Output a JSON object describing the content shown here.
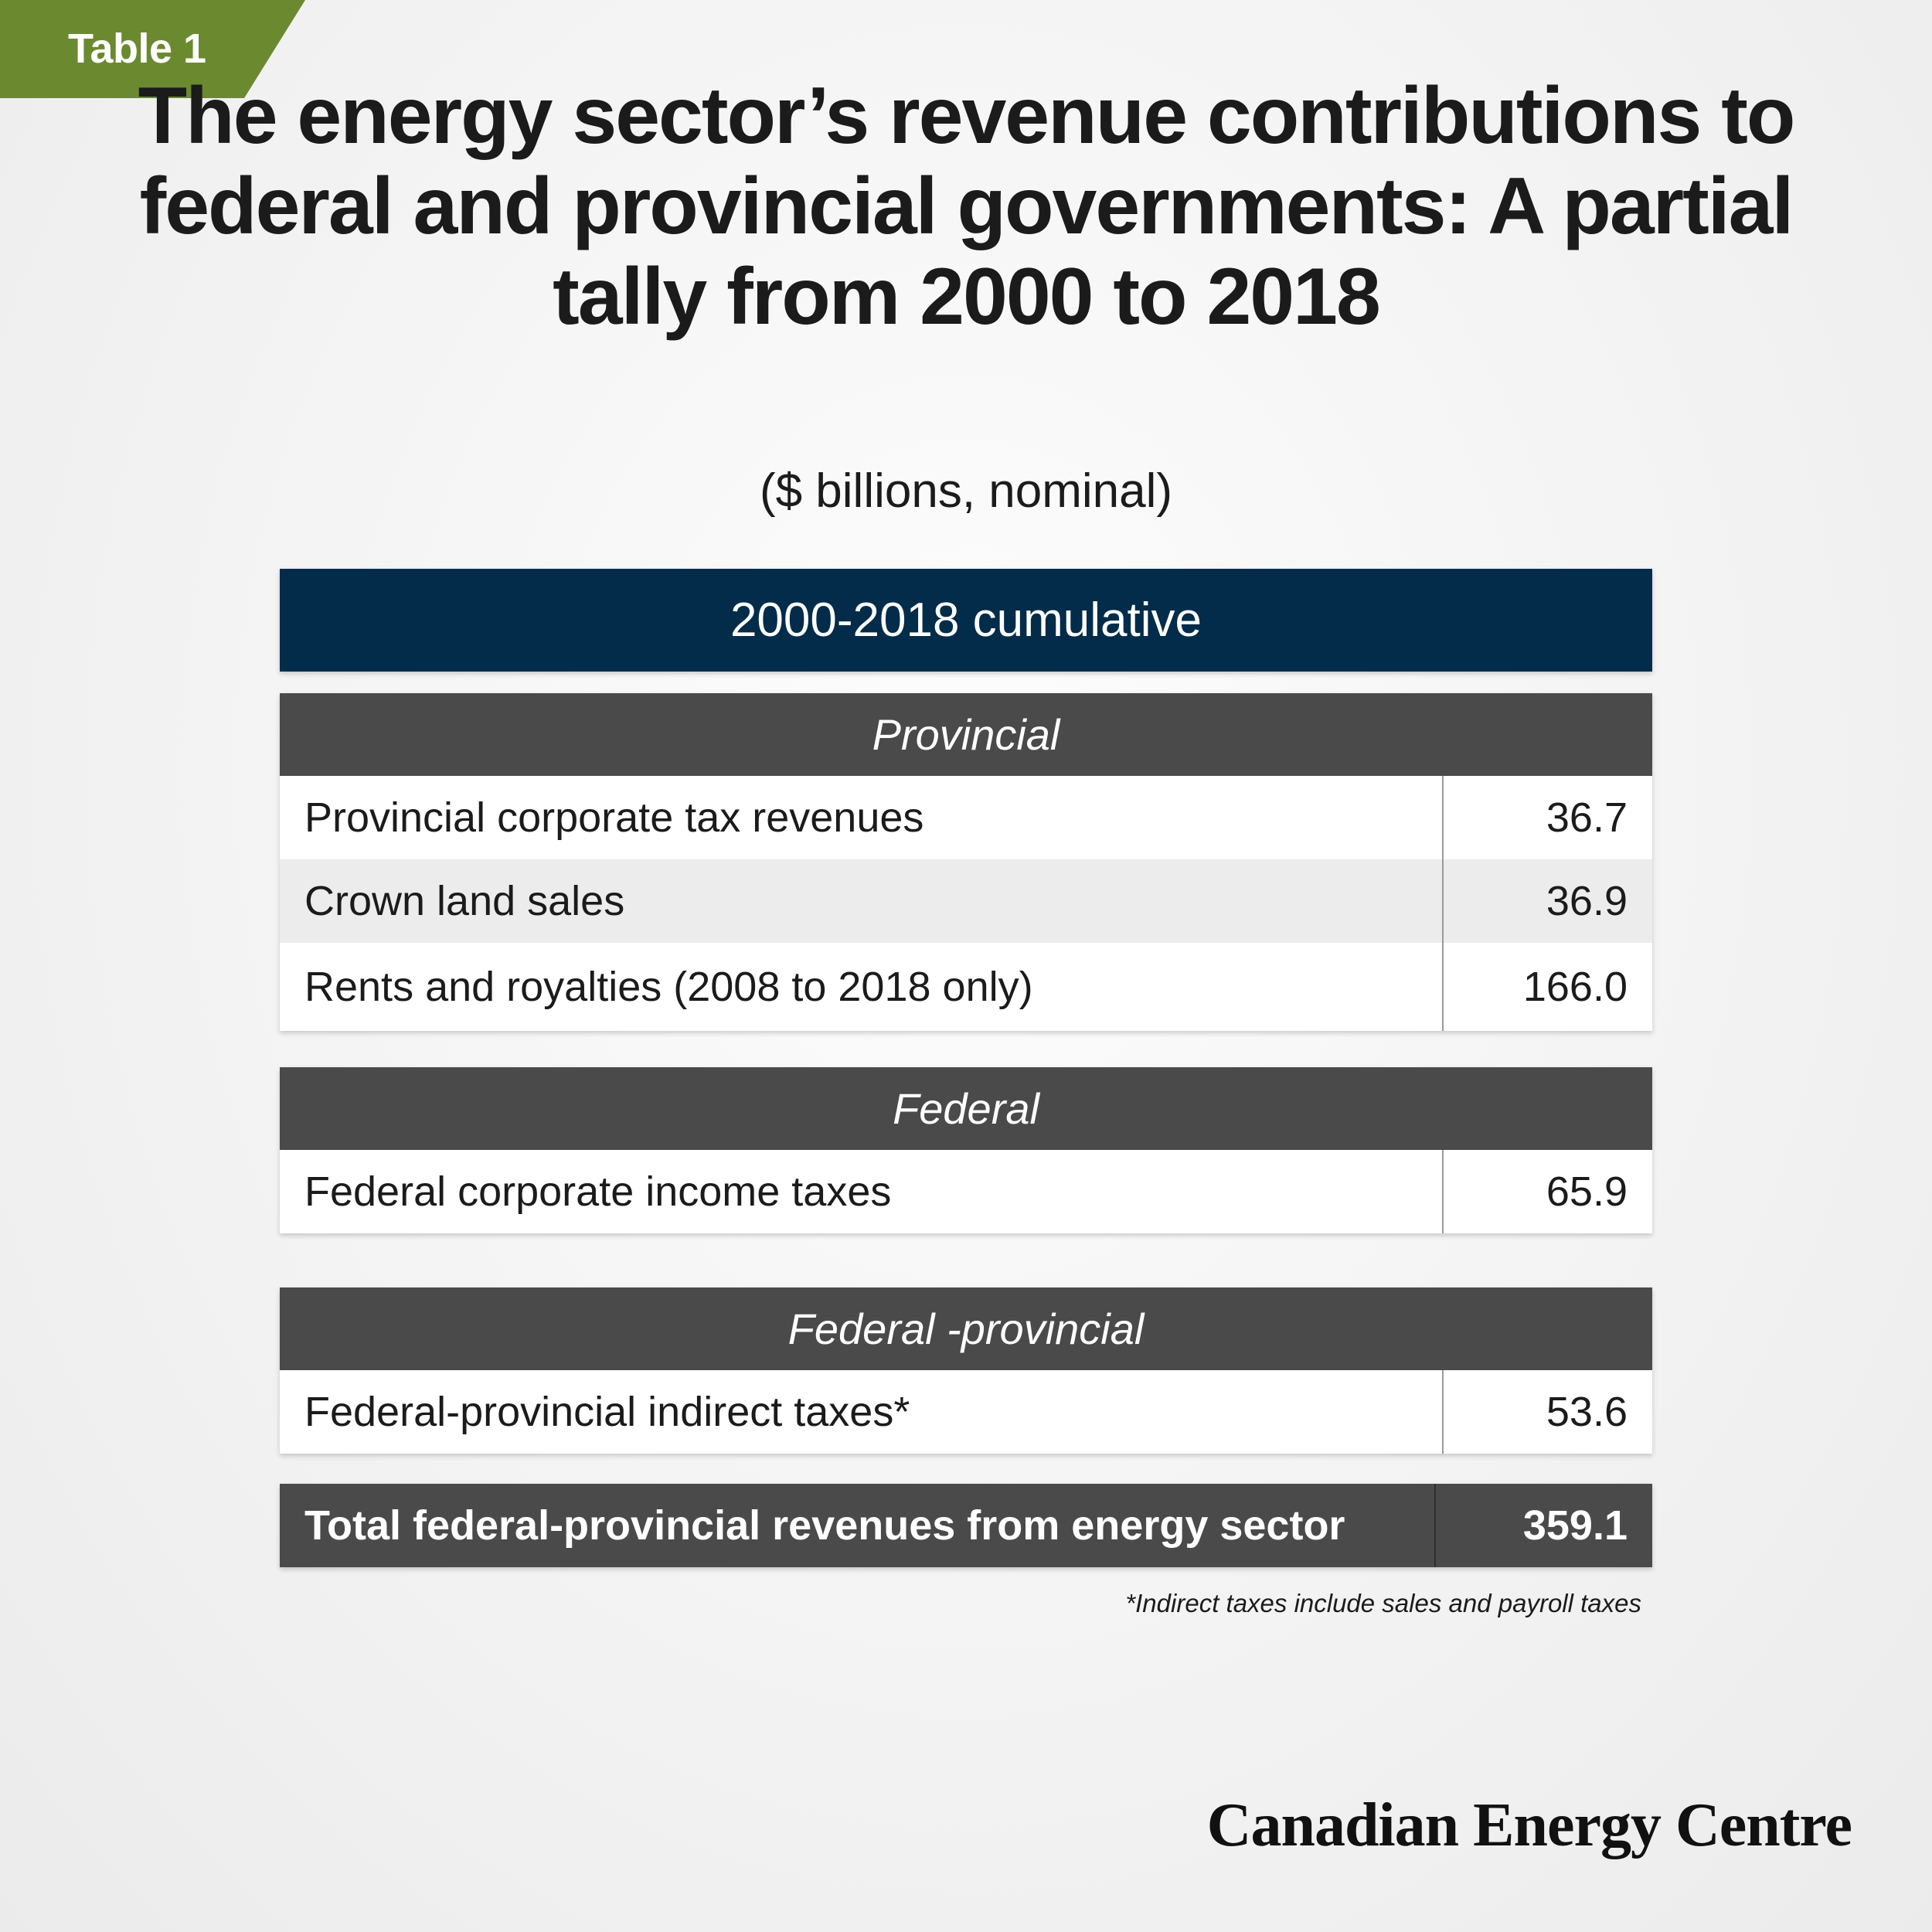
{
  "badge": {
    "label": "Table 1"
  },
  "title": "The energy sector’s revenue contributions to federal and provincial governments: A partial tally from 2000 to 2018",
  "subtitle": "($ billions, nominal)",
  "table": {
    "header": "2000-2018 cumulative",
    "sections": [
      {
        "title": "Provincial",
        "rows": [
          {
            "label": "Provincial corporate tax revenues",
            "value": "36.7"
          },
          {
            "label": "Crown land sales",
            "value": "36.9"
          },
          {
            "label": "Rents and royalties (2008 to 2018 only)",
            "value": "166.0"
          }
        ]
      },
      {
        "title": "Federal",
        "rows": [
          {
            "label": "Federal corporate income taxes",
            "value": "65.9"
          }
        ]
      },
      {
        "title": "Federal -provincial",
        "rows": [
          {
            "label": "Federal-provincial indirect taxes*",
            "value": "53.6"
          }
        ]
      }
    ],
    "total": {
      "label": "Total federal-provincial revenues from energy sector",
      "value": "359.1"
    }
  },
  "footnote": "*Indirect taxes include sales and payroll taxes",
  "brand": "Canadian Energy Centre",
  "colors": {
    "badge": "#6b8a30",
    "main_header": "#022c4a",
    "section_header": "#4a4a4a"
  }
}
